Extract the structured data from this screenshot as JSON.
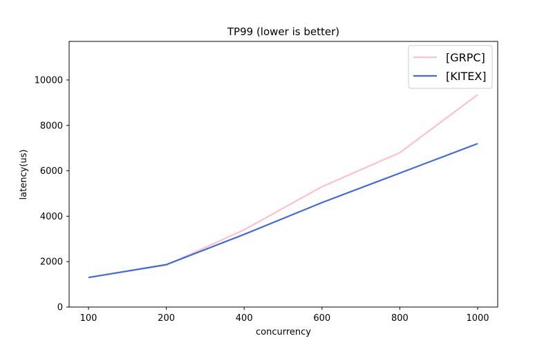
{
  "chart_data": {
    "type": "line",
    "title": "TP99 (lower is better)",
    "xlabel": "concurrency",
    "ylabel": "latency(us)",
    "categories": [
      "100",
      "200",
      "400",
      "600",
      "800",
      "1000"
    ],
    "ylim": [
      0,
      11700
    ],
    "yticks": [
      0,
      2000,
      4000,
      6000,
      8000,
      10000
    ],
    "ytick_labels": [
      "0",
      "2000",
      "4000",
      "6000",
      "8000",
      "10000"
    ],
    "grid": false,
    "legend_position": "top-right",
    "series": [
      {
        "name": "[GRPC]",
        "color": "#ffc0cb",
        "values": [
          1300,
          1850,
          3400,
          5300,
          6800,
          9350
        ]
      },
      {
        "name": "[KITEX]",
        "color": "#4169e1",
        "values": [
          1300,
          1870,
          3200,
          4600,
          5900,
          7200
        ]
      }
    ]
  }
}
